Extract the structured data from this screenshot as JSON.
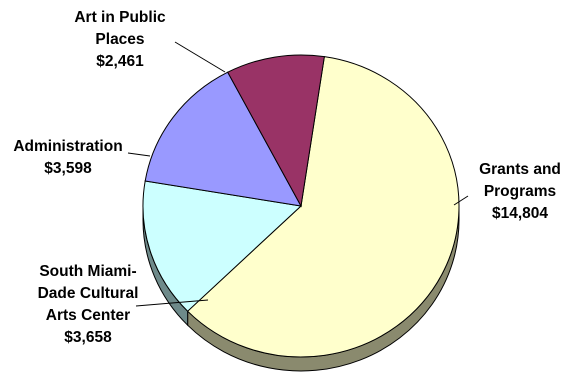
{
  "chart_data": {
    "type": "pie",
    "title": "",
    "subtitle": "",
    "start_angle_deg": -81.5,
    "series": [
      {
        "values": [
          14804,
          3658,
          3598,
          2461
        ],
        "categories": [
          "Grants and Programs",
          "South Miami-Dade Cultural Arts Center",
          "Administration",
          "Art in Public Places"
        ],
        "value_labels": [
          "$14,804",
          "$3,658",
          "$3,598",
          "$2,461"
        ],
        "label_lines": [
          [
            "Grants and",
            "Programs",
            "$14,804"
          ],
          [
            "South Miami-",
            "Dade Cultural",
            "Arts Center",
            "$3,658"
          ],
          [
            "Administration",
            "$3,598"
          ],
          [
            "Art in Public",
            "Places",
            "$2,461"
          ]
        ],
        "colors": [
          "#FFFFCC",
          "#CCFFFF",
          "#9999FF",
          "#993366"
        ],
        "side_colors": [
          "#8A8A6E",
          "#6E8A8A",
          "#52528A",
          "#521B37"
        ]
      }
    ]
  }
}
